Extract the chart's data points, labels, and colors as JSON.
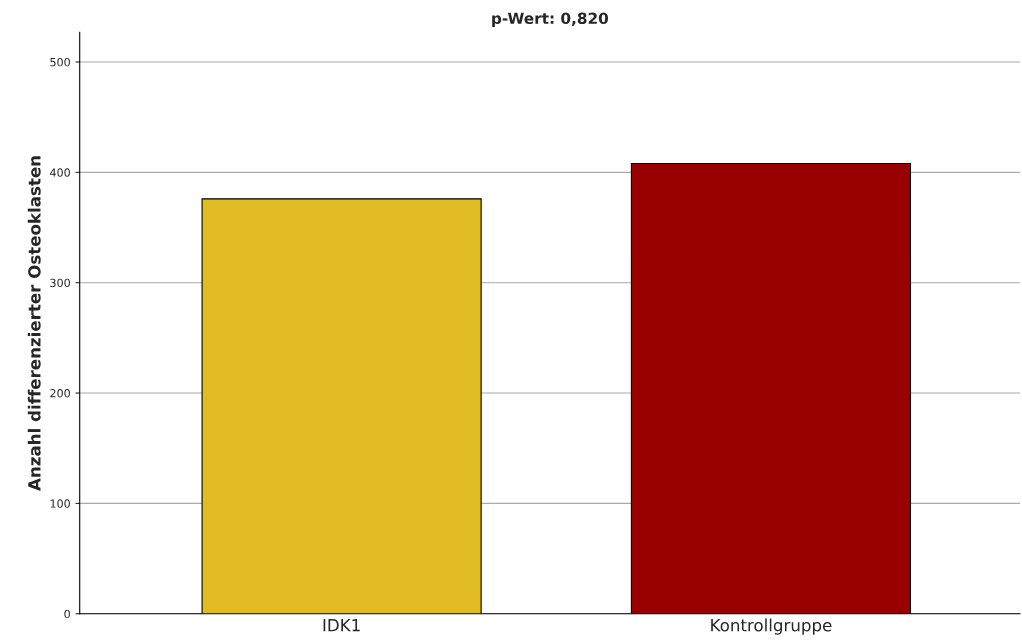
{
  "chart_data": {
    "type": "bar",
    "title": "p-Wert: 0,820",
    "ylabel": "Anzahl differenzierter Osteoklasten",
    "categories": [
      "IDK1",
      "Kontrollgruppe"
    ],
    "values": [
      376,
      408
    ],
    "colors": [
      "#e0bb22",
      "#990000"
    ],
    "ylim": [
      0,
      527
    ],
    "yticks": [
      0,
      100,
      200,
      300,
      400,
      500
    ],
    "grid": "y",
    "legend": false
  }
}
